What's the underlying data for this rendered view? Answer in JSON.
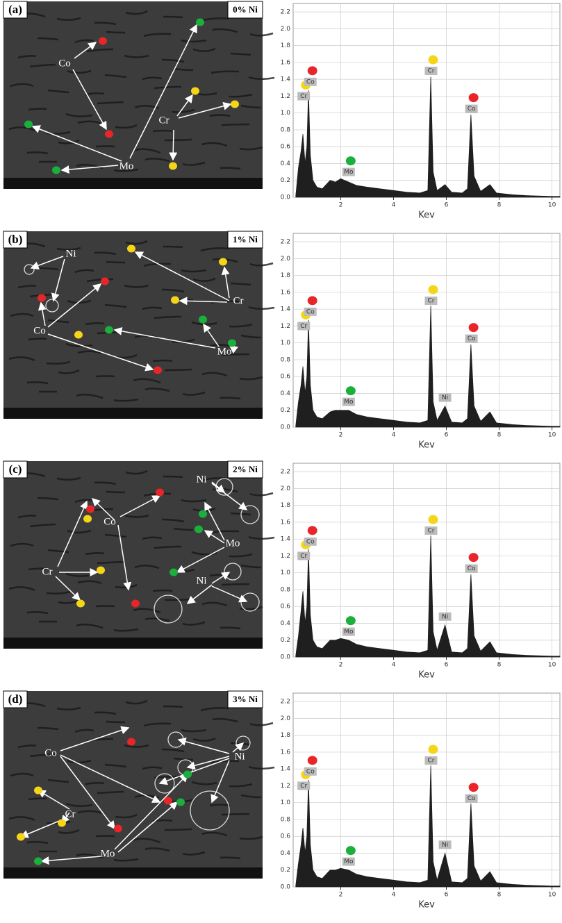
{
  "images": [
    {
      "panel": "(a)",
      "caption": "0% Ni",
      "labels": [
        "Co",
        "Cr",
        "Mo"
      ]
    },
    {
      "panel": "(b)",
      "caption": "1% Ni",
      "labels": [
        "Ni",
        "Co",
        "Cr",
        "Mo"
      ]
    },
    {
      "panel": "(c)",
      "caption": "2% Ni",
      "labels": [
        "Ni",
        "Co",
        "Cr",
        "Mo",
        "Ni"
      ]
    },
    {
      "panel": "(d)",
      "caption": "3% Ni",
      "labels": [
        "Co",
        "Cr",
        "Mo",
        "Ni"
      ]
    }
  ],
  "chart_data": [
    {
      "type": "area",
      "x_label": "Kev",
      "color": "#1f1f1f",
      "grid": true,
      "xlim": [
        0.2,
        10.3
      ],
      "ylim": [
        0,
        2.3
      ],
      "xticks": [
        2,
        4,
        6,
        8,
        10
      ],
      "yticks": [
        {
          "value": 0,
          "label": "0.0"
        },
        0.2,
        0.4,
        0.6,
        0.8,
        {
          "value": 1,
          "label": "1.0"
        },
        1.2,
        1.4,
        1.6,
        1.8,
        {
          "value": 2,
          "label": "2.0"
        },
        2.2
      ],
      "x": [
        0.3,
        0.4,
        0.5,
        0.57,
        0.65,
        0.72,
        0.78,
        0.85,
        0.95,
        1.1,
        1.3,
        1.6,
        1.8,
        2.0,
        2.3,
        2.6,
        3.0,
        3.5,
        4.0,
        4.5,
        5.0,
        5.3,
        5.41,
        5.5,
        5.65,
        5.95,
        6.2,
        6.6,
        6.8,
        6.93,
        7.05,
        7.3,
        7.65,
        7.9,
        8.5,
        9.0,
        10.0,
        10.3
      ],
      "values": [
        0.02,
        0.35,
        0.55,
        0.75,
        0.4,
        0.6,
        1.27,
        0.5,
        0.2,
        0.12,
        0.1,
        0.2,
        0.18,
        0.22,
        0.18,
        0.14,
        0.12,
        0.1,
        0.08,
        0.06,
        0.05,
        0.08,
        1.43,
        0.3,
        0.08,
        0.15,
        0.06,
        0.05,
        0.1,
        0.98,
        0.25,
        0.07,
        0.15,
        0.05,
        0.03,
        0.02,
        0.01,
        0.01
      ],
      "annotations": [
        {
          "text": "Cr",
          "x": 0.6,
          "y": 1.2,
          "color": "#f5d518"
        },
        {
          "text": "Co",
          "x": 0.85,
          "y": 1.37,
          "color": "#e8262a"
        },
        {
          "text": "Mo",
          "x": 2.3,
          "y": 0.3,
          "color": "#1bb03b"
        },
        {
          "text": "Cr",
          "x": 5.42,
          "y": 1.5,
          "color": "#f5d518"
        },
        {
          "text": "Co",
          "x": 6.95,
          "y": 1.05,
          "color": "#e8262a"
        }
      ]
    },
    {
      "type": "area",
      "x_label": "Kev",
      "color": "#1f1f1f",
      "grid": true,
      "xlim": [
        0.2,
        10.3
      ],
      "ylim": [
        0,
        2.3
      ],
      "xticks": [
        2,
        4,
        6,
        8,
        10
      ],
      "yticks": [
        {
          "value": 0,
          "label": "0.0"
        },
        0.2,
        0.4,
        0.6,
        0.8,
        {
          "value": 1,
          "label": "1.0"
        },
        1.2,
        1.4,
        1.6,
        1.8,
        {
          "value": 2,
          "label": "2.0"
        },
        2.2
      ],
      "x": [
        0.3,
        0.4,
        0.5,
        0.57,
        0.65,
        0.72,
        0.78,
        0.85,
        0.95,
        1.1,
        1.3,
        1.6,
        1.8,
        2.0,
        2.3,
        2.6,
        3.0,
        3.5,
        4.0,
        4.5,
        5.0,
        5.3,
        5.41,
        5.5,
        5.65,
        5.95,
        6.2,
        6.6,
        6.8,
        6.93,
        7.05,
        7.3,
        7.65,
        7.9,
        8.5,
        9.0,
        10.0,
        10.3
      ],
      "values": [
        0.02,
        0.3,
        0.5,
        0.72,
        0.4,
        0.6,
        1.27,
        0.5,
        0.2,
        0.12,
        0.1,
        0.18,
        0.2,
        0.2,
        0.2,
        0.15,
        0.12,
        0.1,
        0.08,
        0.06,
        0.05,
        0.08,
        1.44,
        0.3,
        0.08,
        0.25,
        0.06,
        0.05,
        0.1,
        0.98,
        0.25,
        0.07,
        0.18,
        0.05,
        0.03,
        0.02,
        0.01,
        0.01
      ],
      "annotations": [
        {
          "text": "Cr",
          "x": 0.6,
          "y": 1.2,
          "color": "#f5d518"
        },
        {
          "text": "Co",
          "x": 0.85,
          "y": 1.37,
          "color": "#e8262a"
        },
        {
          "text": "Mo",
          "x": 2.3,
          "y": 0.3,
          "color": "#1bb03b"
        },
        {
          "text": "Cr",
          "x": 5.42,
          "y": 1.5,
          "color": "#f5d518"
        },
        {
          "text": "Ni",
          "x": 5.95,
          "y": 0.35
        },
        {
          "text": "Co",
          "x": 6.95,
          "y": 1.05,
          "color": "#e8262a"
        }
      ]
    },
    {
      "type": "area",
      "x_label": "Kev",
      "color": "#1f1f1f",
      "grid": true,
      "xlim": [
        0.2,
        10.3
      ],
      "ylim": [
        0,
        2.3
      ],
      "xticks": [
        2,
        4,
        6,
        8,
        10
      ],
      "yticks": [
        {
          "value": 0,
          "label": "0.0"
        },
        0.2,
        0.4,
        0.6,
        0.8,
        {
          "value": 1,
          "label": "1.0"
        },
        1.2,
        1.4,
        1.6,
        1.8,
        {
          "value": 2,
          "label": "2.0"
        },
        2.2
      ],
      "x": [
        0.3,
        0.4,
        0.5,
        0.57,
        0.65,
        0.72,
        0.78,
        0.85,
        0.95,
        1.1,
        1.3,
        1.6,
        1.8,
        2.0,
        2.3,
        2.6,
        3.0,
        3.5,
        4.0,
        4.5,
        5.0,
        5.3,
        5.41,
        5.5,
        5.65,
        5.95,
        6.2,
        6.6,
        6.8,
        6.93,
        7.05,
        7.3,
        7.65,
        7.9,
        8.5,
        9.0,
        10.0,
        10.3
      ],
      "values": [
        0.02,
        0.25,
        0.55,
        0.78,
        0.4,
        0.6,
        1.28,
        0.5,
        0.2,
        0.12,
        0.1,
        0.2,
        0.2,
        0.22,
        0.2,
        0.15,
        0.12,
        0.1,
        0.08,
        0.06,
        0.05,
        0.08,
        1.44,
        0.3,
        0.08,
        0.38,
        0.06,
        0.05,
        0.1,
        0.98,
        0.25,
        0.07,
        0.18,
        0.05,
        0.03,
        0.02,
        0.01,
        0.01
      ],
      "annotations": [
        {
          "text": "Cr",
          "x": 0.6,
          "y": 1.2,
          "color": "#f5d518"
        },
        {
          "text": "Co",
          "x": 0.85,
          "y": 1.37,
          "color": "#e8262a"
        },
        {
          "text": "Mo",
          "x": 2.3,
          "y": 0.3,
          "color": "#1bb03b"
        },
        {
          "text": "Cr",
          "x": 5.42,
          "y": 1.5,
          "color": "#f5d518"
        },
        {
          "text": "Ni",
          "x": 5.95,
          "y": 0.48
        },
        {
          "text": "Co",
          "x": 6.95,
          "y": 1.05,
          "color": "#e8262a"
        }
      ]
    },
    {
      "type": "area",
      "x_label": "Kev",
      "color": "#1f1f1f",
      "grid": true,
      "xlim": [
        0.2,
        10.3
      ],
      "ylim": [
        0,
        2.3
      ],
      "xticks": [
        2,
        4,
        6,
        8,
        10
      ],
      "yticks": [
        {
          "value": 0,
          "label": "0.0"
        },
        0.2,
        0.4,
        0.6,
        0.8,
        {
          "value": 1,
          "label": "1.0"
        },
        1.2,
        1.4,
        1.6,
        1.8,
        {
          "value": 2,
          "label": "2.0"
        },
        2.2
      ],
      "x": [
        0.3,
        0.4,
        0.5,
        0.57,
        0.65,
        0.72,
        0.78,
        0.85,
        0.95,
        1.1,
        1.3,
        1.6,
        1.8,
        2.0,
        2.3,
        2.6,
        3.0,
        3.5,
        4.0,
        4.5,
        5.0,
        5.3,
        5.41,
        5.5,
        5.65,
        5.95,
        6.2,
        6.6,
        6.8,
        6.93,
        7.05,
        7.3,
        7.65,
        7.9,
        8.5,
        9.0,
        10.0,
        10.3
      ],
      "values": [
        0.02,
        0.28,
        0.5,
        0.7,
        0.4,
        0.6,
        1.27,
        0.5,
        0.2,
        0.12,
        0.1,
        0.2,
        0.2,
        0.22,
        0.2,
        0.15,
        0.12,
        0.1,
        0.08,
        0.06,
        0.05,
        0.08,
        1.44,
        0.3,
        0.08,
        0.4,
        0.06,
        0.05,
        0.1,
        0.99,
        0.25,
        0.07,
        0.18,
        0.05,
        0.03,
        0.02,
        0.01,
        0.01
      ],
      "annotations": [
        {
          "text": "Cr",
          "x": 0.6,
          "y": 1.2,
          "color": "#f5d518"
        },
        {
          "text": "Co",
          "x": 0.85,
          "y": 1.37,
          "color": "#e8262a"
        },
        {
          "text": "Mo",
          "x": 2.3,
          "y": 0.3,
          "color": "#1bb03b"
        },
        {
          "text": "Cr",
          "x": 5.42,
          "y": 1.5,
          "color": "#f5d518"
        },
        {
          "text": "Ni",
          "x": 5.95,
          "y": 0.5
        },
        {
          "text": "Co",
          "x": 6.95,
          "y": 1.05,
          "color": "#e8262a"
        }
      ]
    }
  ]
}
